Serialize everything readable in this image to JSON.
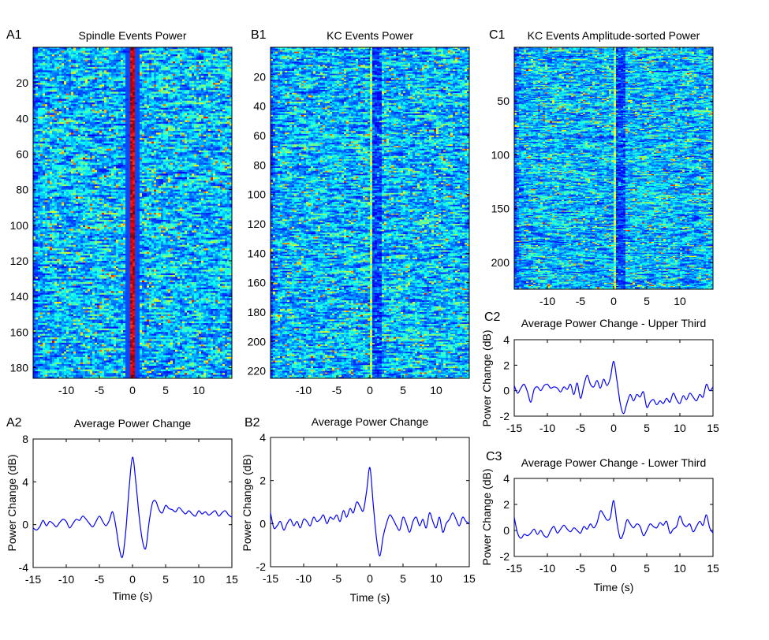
{
  "figure": {
    "panel_letters": {
      "A1": "A1",
      "A2": "A2",
      "B1": "B1",
      "B2": "B2",
      "C1": "C1",
      "C2": "C2",
      "C3": "C3"
    }
  },
  "chart_data": [
    {
      "id": "A1",
      "type": "heatmap",
      "title": "Spindle Events Power",
      "xlabel": "",
      "ylabel": "",
      "xlim": [
        -15,
        15
      ],
      "ylim": [
        186,
        0
      ],
      "xticks": [
        -10,
        -5,
        0,
        5,
        10
      ],
      "yticks": [
        20,
        40,
        60,
        80,
        100,
        120,
        140,
        160,
        180
      ],
      "rows": 186,
      "colormap": "jet",
      "event_type": "spindle",
      "seed": 11
    },
    {
      "id": "B1",
      "type": "heatmap",
      "title": "KC Events Power",
      "xlabel": "",
      "ylabel": "",
      "xlim": [
        -15,
        15
      ],
      "ylim": [
        225,
        0
      ],
      "xticks": [
        -10,
        -5,
        0,
        5,
        10
      ],
      "yticks": [
        20,
        40,
        60,
        80,
        100,
        120,
        140,
        160,
        180,
        200,
        220
      ],
      "rows": 225,
      "colormap": "jet",
      "event_type": "kc",
      "seed": 23
    },
    {
      "id": "C1",
      "type": "heatmap",
      "title": "KC Events Amplitude-sorted Power",
      "xlabel": "",
      "ylabel": "",
      "xlim": [
        -15,
        15
      ],
      "ylim": [
        225,
        0
      ],
      "xticks": [
        -10,
        -5,
        0,
        5,
        10
      ],
      "yticks": [
        50,
        100,
        150,
        200
      ],
      "rows": 225,
      "colormap": "jet",
      "event_type": "kc",
      "seed": 37
    },
    {
      "id": "A2",
      "type": "line",
      "title": "Average Power Change",
      "xlabel": "Time (s)",
      "ylabel": "Power Change (dB)",
      "xlim": [
        -15,
        15
      ],
      "ylim": [
        -4,
        8
      ],
      "xticks": [
        -15,
        -10,
        -5,
        0,
        5,
        10,
        15
      ],
      "yticks": [
        -4,
        0,
        4,
        8
      ],
      "line_color": "#0000ff",
      "series": [
        {
          "name": "average",
          "x": [
            -15,
            -14.5,
            -14,
            -13.5,
            -13,
            -12.5,
            -12,
            -11.5,
            -11,
            -10.5,
            -10,
            -9.5,
            -9,
            -8.5,
            -8,
            -7.5,
            -7,
            -6.5,
            -6,
            -5.5,
            -5,
            -4.5,
            -4,
            -3.5,
            -3,
            -2.5,
            -2,
            -1.5,
            -1,
            -0.5,
            0,
            0.5,
            1,
            1.5,
            2,
            2.5,
            3,
            3.5,
            4,
            4.5,
            5,
            5.5,
            6,
            6.5,
            7,
            7.5,
            8,
            8.5,
            9,
            9.5,
            10,
            10.5,
            11,
            11.5,
            12,
            12.5,
            13,
            13.5,
            14,
            14.5,
            15
          ],
          "y": [
            -0.3,
            -0.5,
            -0.2,
            0.4,
            -0.1,
            0.3,
            0.1,
            -0.2,
            0.2,
            0.5,
            0.3,
            -0.3,
            0.1,
            0.5,
            0.4,
            0.8,
            0.5,
            0.1,
            -0.2,
            0.3,
            0.8,
            0.3,
            -0.1,
            0.4,
            1.2,
            -0.2,
            -2.2,
            -3.0,
            -0.5,
            3.5,
            6.3,
            4.0,
            0.8,
            -1.5,
            -2.2,
            0.2,
            2.0,
            2.2,
            1.4,
            1.1,
            1.8,
            1.5,
            1.4,
            1.2,
            1.6,
            1.3,
            1.0,
            1.3,
            1.0,
            0.8,
            1.3,
            1.0,
            1.2,
            0.9,
            1.1,
            1.3,
            0.8,
            1.1,
            1.3,
            0.9,
            0.7
          ]
        }
      ]
    },
    {
      "id": "B2",
      "type": "line",
      "title": "Average Power Change",
      "xlabel": "Time (s)",
      "ylabel": "Power Change (dB)",
      "xlim": [
        -15,
        15
      ],
      "ylim": [
        -2,
        4
      ],
      "xticks": [
        -15,
        -10,
        -5,
        0,
        5,
        10,
        15
      ],
      "yticks": [
        -2,
        0,
        2,
        4
      ],
      "line_color": "#0000ff",
      "series": [
        {
          "name": "average",
          "x": [
            -15,
            -14.5,
            -14,
            -13.5,
            -13,
            -12.5,
            -12,
            -11.5,
            -11,
            -10.5,
            -10,
            -9.5,
            -9,
            -8.5,
            -8,
            -7.5,
            -7,
            -6.5,
            -6,
            -5.5,
            -5,
            -4.5,
            -4,
            -3.5,
            -3,
            -2.5,
            -2,
            -1.5,
            -1,
            -0.5,
            0,
            0.5,
            1,
            1.5,
            2,
            2.5,
            3,
            3.5,
            4,
            4.5,
            5,
            5.5,
            6,
            6.5,
            7,
            7.5,
            8,
            8.5,
            9,
            9.5,
            10,
            10.5,
            11,
            11.5,
            12,
            12.5,
            13,
            13.5,
            14,
            14.5,
            15
          ],
          "y": [
            0.5,
            -0.2,
            -0.1,
            0.1,
            -0.3,
            0.0,
            0.2,
            -0.1,
            0.1,
            -0.2,
            0.2,
            0.1,
            -0.1,
            0.3,
            0.1,
            0.2,
            0.4,
            0.0,
            0.3,
            0.2,
            0.4,
            0.1,
            0.6,
            0.3,
            0.7,
            0.5,
            1.0,
            0.8,
            0.6,
            1.5,
            2.6,
            0.9,
            -0.7,
            -1.5,
            -0.6,
            0.0,
            0.4,
            0.2,
            -0.1,
            -0.3,
            0.3,
            0.0,
            -0.4,
            0.1,
            0.3,
            -0.1,
            0.2,
            -0.2,
            0.5,
            0.1,
            -0.2,
            0.3,
            -0.4,
            0.0,
            0.2,
            0.5,
            0.2,
            -0.1,
            0.3,
            0.1,
            0.0
          ]
        }
      ]
    },
    {
      "id": "C2",
      "type": "line",
      "title": "Average Power Change - Upper Third",
      "xlabel": "",
      "ylabel": "Power Change (dB)",
      "xlim": [
        -15,
        15
      ],
      "ylim": [
        -2,
        4
      ],
      "xticks": [
        -15,
        -10,
        -5,
        0,
        5,
        10,
        15
      ],
      "yticks": [
        -2,
        0,
        2,
        4
      ],
      "line_color": "#0000ff",
      "series": [
        {
          "name": "upper",
          "x": [
            -15,
            -14.5,
            -14,
            -13.5,
            -13,
            -12.5,
            -12,
            -11.5,
            -11,
            -10.5,
            -10,
            -9.5,
            -9,
            -8.5,
            -8,
            -7.5,
            -7,
            -6.5,
            -6,
            -5.5,
            -5,
            -4.5,
            -4,
            -3.5,
            -3,
            -2.5,
            -2,
            -1.5,
            -1,
            -0.5,
            0,
            0.5,
            1,
            1.5,
            2,
            2.5,
            3,
            3.5,
            4,
            4.5,
            5,
            5.5,
            6,
            6.5,
            7,
            7.5,
            8,
            8.5,
            9,
            9.5,
            10,
            10.5,
            11,
            11.5,
            12,
            12.5,
            13,
            13.5,
            14,
            14.5,
            15
          ],
          "y": [
            0.4,
            -0.2,
            0.2,
            0.5,
            -0.1,
            -0.9,
            0.1,
            0.3,
            0.0,
            0.4,
            0.5,
            0.2,
            0.3,
            0.2,
            -0.1,
            0.3,
            0.1,
            0.5,
            -0.3,
            0.6,
            -0.6,
            0.4,
            1.2,
            0.5,
            0.3,
            0.8,
            0.2,
            0.9,
            0.4,
            1.0,
            2.3,
            0.8,
            -1.0,
            -1.8,
            -1.0,
            -0.3,
            -0.8,
            -0.3,
            -0.5,
            -0.1,
            -1.3,
            -0.9,
            -0.7,
            -1.1,
            -0.8,
            -1.0,
            -0.6,
            -0.9,
            -0.2,
            -0.7,
            -1.0,
            -0.4,
            -0.7,
            -0.2,
            -0.5,
            -0.8,
            -0.3,
            -0.5,
            0.5,
            0.0,
            0.3
          ]
        }
      ]
    },
    {
      "id": "C3",
      "type": "line",
      "title": "Average Power Change - Lower Third",
      "xlabel": "Time (s)",
      "ylabel": "Power Change (dB)",
      "xlim": [
        -15,
        15
      ],
      "ylim": [
        -2,
        4
      ],
      "xticks": [
        -15,
        -10,
        -5,
        0,
        5,
        10,
        15
      ],
      "yticks": [
        -2,
        0,
        2,
        4
      ],
      "line_color": "#0000ff",
      "series": [
        {
          "name": "lower",
          "x": [
            -15,
            -14.5,
            -14,
            -13.5,
            -13,
            -12.5,
            -12,
            -11.5,
            -11,
            -10.5,
            -10,
            -9.5,
            -9,
            -8.5,
            -8,
            -7.5,
            -7,
            -6.5,
            -6,
            -5.5,
            -5,
            -4.5,
            -4,
            -3.5,
            -3,
            -2.5,
            -2,
            -1.5,
            -1,
            -0.5,
            0,
            0.5,
            1,
            1.5,
            2,
            2.5,
            3,
            3.5,
            4,
            4.5,
            5,
            5.5,
            6,
            6.5,
            7,
            7.5,
            8,
            8.5,
            9,
            9.5,
            10,
            10.5,
            11,
            11.5,
            12,
            12.5,
            13,
            13.5,
            14,
            14.5,
            15
          ],
          "y": [
            1.0,
            -0.2,
            -0.6,
            -0.3,
            -0.4,
            -0.2,
            0.1,
            -0.3,
            0.0,
            -0.4,
            -0.5,
            0.0,
            0.3,
            -0.2,
            0.1,
            0.4,
            0.1,
            -0.1,
            0.2,
            0.0,
            -0.2,
            0.3,
            0.1,
            0.5,
            0.2,
            0.6,
            1.5,
            1.2,
            0.8,
            1.0,
            2.3,
            0.6,
            -0.6,
            -0.2,
            0.8,
            0.5,
            0.2,
            0.5,
            0.3,
            -0.4,
            0.0,
            0.5,
            0.3,
            0.2,
            0.6,
            0.4,
            0.7,
            -0.2,
            0.1,
            0.3,
            1.1,
            0.5,
            0.3,
            0.5,
            -0.1,
            0.3,
            0.7,
            0.4,
            1.2,
            0.2,
            -0.2
          ]
        }
      ]
    }
  ]
}
